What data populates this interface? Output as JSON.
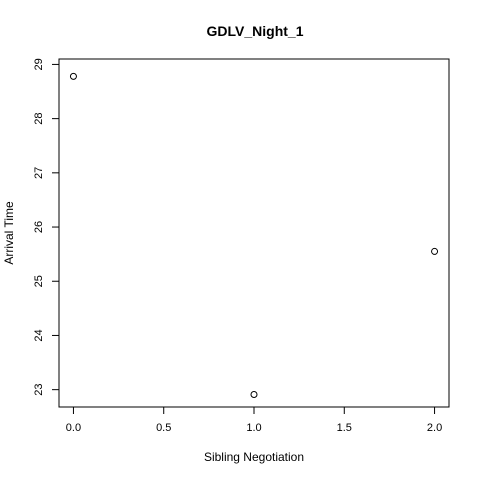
{
  "chart_data": {
    "type": "scatter",
    "title": "GDLV_Night_1",
    "xlabel": "Sibling Negotiation",
    "ylabel": "Arrival Time",
    "xlim": [
      -0.08,
      2.08
    ],
    "ylim": [
      22.68,
      29.1
    ],
    "xticks": [
      0,
      0.5,
      1,
      1.5,
      2
    ],
    "xtick_labels": [
      "0.0",
      "0.5",
      "1.0",
      "1.5",
      "2.0"
    ],
    "yticks": [
      23,
      24,
      25,
      26,
      27,
      28,
      29
    ],
    "ytick_labels": [
      "23",
      "24",
      "25",
      "26",
      "27",
      "28",
      "29"
    ],
    "grid": false,
    "marker": "open-circle",
    "points": [
      {
        "x": 0,
        "y": 28.78
      },
      {
        "x": 1,
        "y": 22.91
      },
      {
        "x": 2,
        "y": 25.55
      }
    ]
  }
}
